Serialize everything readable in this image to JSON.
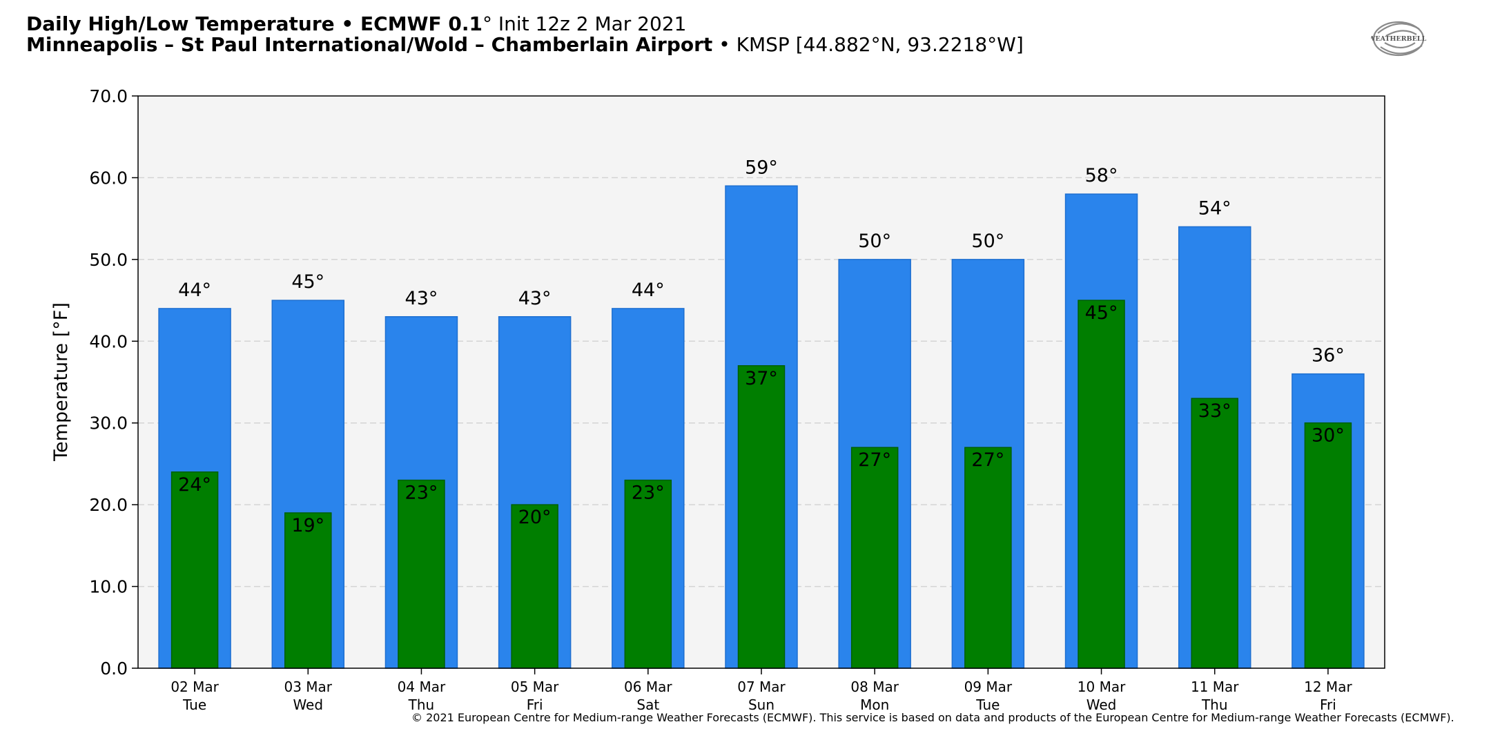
{
  "header": {
    "line1_bold": "Daily High/Low Temperature • ECMWF 0.1",
    "line1_deg": "°",
    "line1_rest": " Init 12z 2 Mar 2021",
    "line2_bold": "Minneapolis – St Paul International/Wold – Chamberlain Airport",
    "line2_rest": " • KMSP [44.882°N, 93.2218°W]"
  },
  "logo": {
    "text": "WEATHERBELL",
    "icon": "weatherbell-swirl-logo"
  },
  "copyright": "© 2021 European Centre for Medium-range Weather Forecasts (ECMWF). This service is based on data and products of the European Centre for Medium-range Weather Forecasts (ECMWF).",
  "colors": {
    "high": "#2a84ec",
    "low": "#007e00",
    "plot_bg": "#f4f4f4",
    "grid": "#d4d4d4"
  },
  "chart_data": {
    "type": "bar",
    "ylabel": "Temperature [°F]",
    "xlabel": "",
    "ylim": [
      0,
      70
    ],
    "yticks": [
      "0.0",
      "10.0",
      "20.0",
      "30.0",
      "40.0",
      "50.0",
      "60.0",
      "70.0"
    ],
    "grid": true,
    "categories": [
      "02 Mar",
      "03 Mar",
      "04 Mar",
      "05 Mar",
      "06 Mar",
      "07 Mar",
      "08 Mar",
      "09 Mar",
      "10 Mar",
      "11 Mar",
      "12 Mar"
    ],
    "weekdays": [
      "Tue",
      "Wed",
      "Thu",
      "Fri",
      "Sat",
      "Sun",
      "Mon",
      "Tue",
      "Wed",
      "Thu",
      "Fri"
    ],
    "series": [
      {
        "key": "high",
        "values": [
          44,
          45,
          43,
          43,
          44,
          59,
          50,
          50,
          58,
          54,
          36
        ],
        "labels": [
          "44°",
          "45°",
          "43°",
          "43°",
          "44°",
          "59°",
          "50°",
          "50°",
          "58°",
          "54°",
          "36°"
        ]
      },
      {
        "key": "low",
        "values": [
          24,
          19,
          23,
          20,
          23,
          37,
          27,
          27,
          45,
          33,
          30
        ],
        "labels": [
          "24°",
          "19°",
          "23°",
          "20°",
          "23°",
          "37°",
          "27°",
          "27°",
          "45°",
          "33°",
          "30°"
        ]
      }
    ]
  }
}
